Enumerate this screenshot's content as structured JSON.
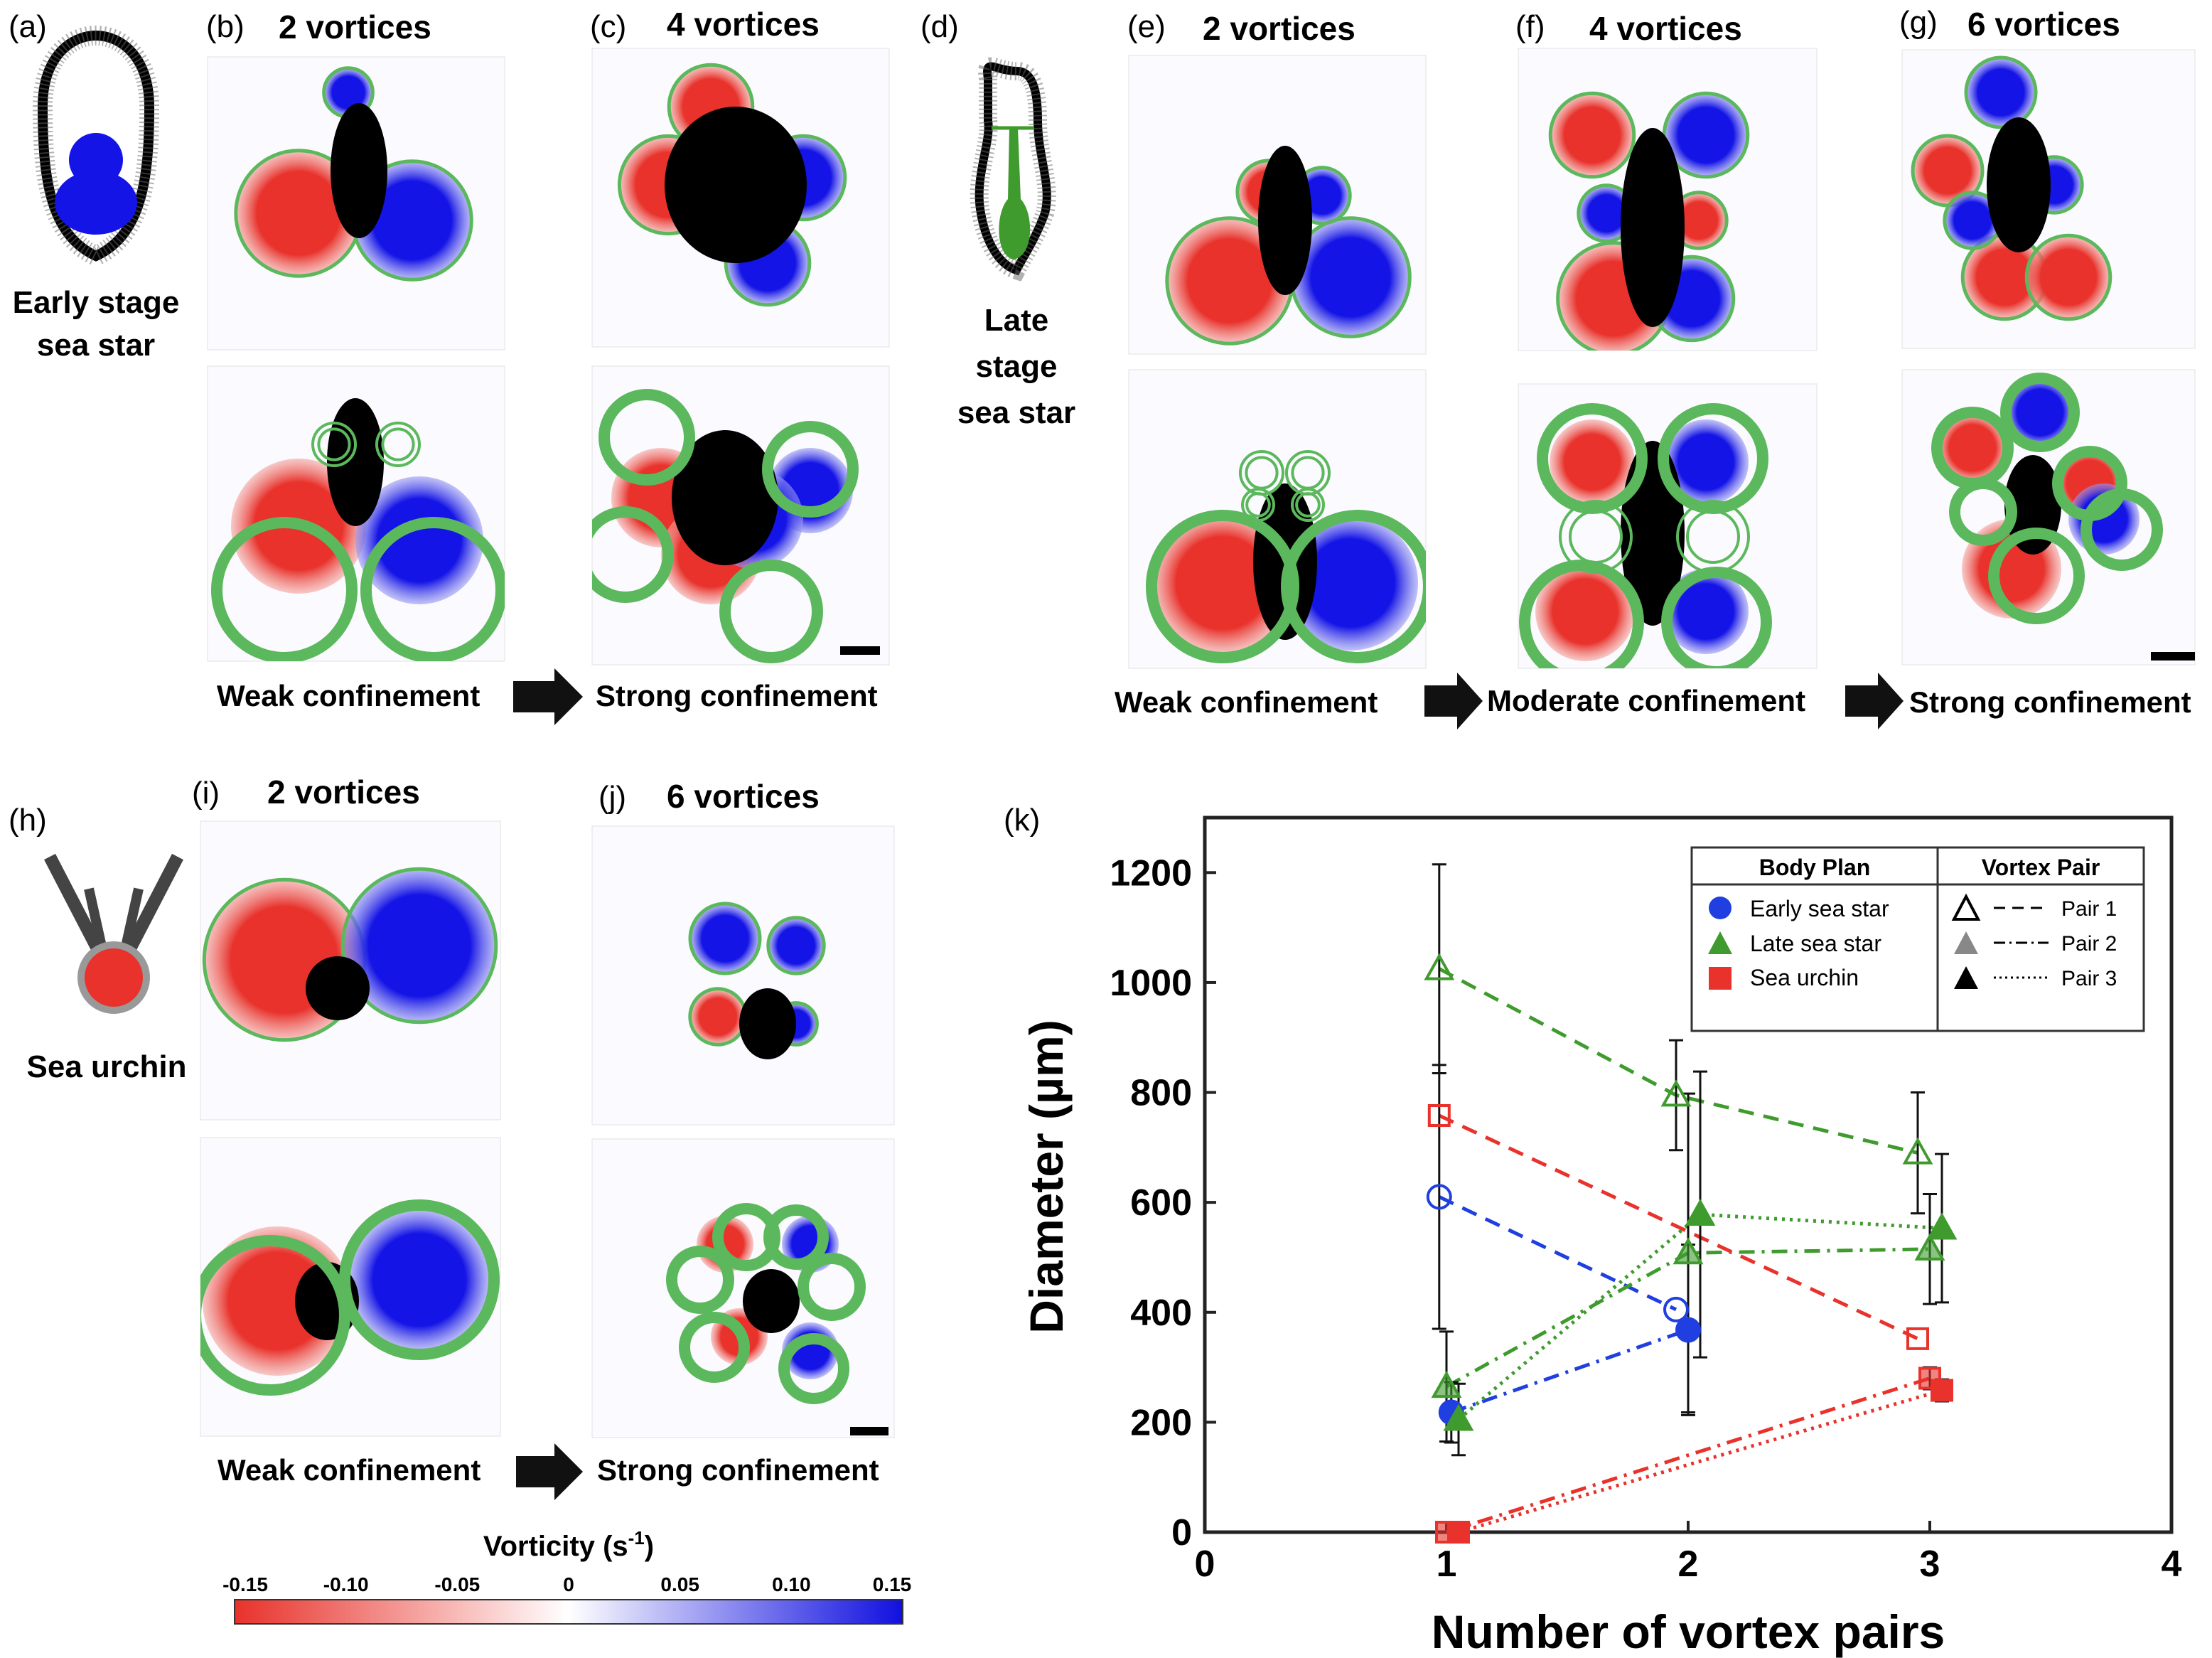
{
  "panels": {
    "a": {
      "tag": "(a)",
      "caption_line1": "Early stage",
      "caption_line2": "sea star"
    },
    "b": {
      "tag": "(b)",
      "title": "2 vortices"
    },
    "c": {
      "tag": "(c)",
      "title": "4 vortices"
    },
    "d": {
      "tag": "(d)",
      "caption_line1": "Late",
      "caption_line2": "stage",
      "caption_line3": "sea star"
    },
    "e": {
      "tag": "(e)",
      "title": "2 vortices"
    },
    "f": {
      "tag": "(f)",
      "title": "4 vortices"
    },
    "g": {
      "tag": "(g)",
      "title": "6 vortices"
    },
    "h": {
      "tag": "(h)",
      "caption": "Sea urchin"
    },
    "i": {
      "tag": "(i)",
      "title": "2 vortices"
    },
    "j": {
      "tag": "(j)",
      "title": "6 vortices"
    },
    "k": {
      "tag": "(k)"
    }
  },
  "confinement": {
    "row1": [
      "Weak confinement",
      "Strong confinement"
    ],
    "row2": [
      "Weak confinement",
      "Moderate confinement",
      "Strong confinement"
    ],
    "row3": [
      "Weak confinement",
      "Strong confinement"
    ]
  },
  "colorbar": {
    "title": "Vorticity (s",
    "title_sup": "-1",
    "title_end": ")",
    "ticks": [
      "-0.15",
      "-0.10",
      "-0.05",
      "0",
      "0.05",
      "0.10",
      "0.15"
    ],
    "neg_color": "#e8322b",
    "pos_color": "#1010e0"
  },
  "colors": {
    "red": "#e8322b",
    "blue": "#1414e6",
    "green": "#3f9b2e",
    "outline_green": "#5cb85c",
    "black": "#000000"
  },
  "chart_data": {
    "type": "scatter",
    "xlabel": "Number of vortex pairs",
    "ylabel": "Diameter (µm)",
    "xlim": [
      0,
      4
    ],
    "ylim": [
      0,
      1300
    ],
    "xticks": [
      0,
      1,
      2,
      3,
      4
    ],
    "yticks": [
      0,
      200,
      400,
      600,
      800,
      1000,
      1200
    ],
    "legend": {
      "body_plan_header": "Body Plan",
      "vortex_pair_header": "Vortex Pair",
      "body_plans": [
        "Early sea star",
        "Late sea star",
        "Sea urchin"
      ],
      "pairs": [
        "Pair 1",
        "Pair 2",
        "Pair 3"
      ],
      "placement": "top-right"
    },
    "series": [
      {
        "name": "Early sea star - Pair 1",
        "color": "#1f3fe0",
        "marker": "circle-open",
        "dash": "dashed",
        "points": [
          {
            "x": 0.97,
            "y": 610,
            "err": 240
          },
          {
            "x": 1.95,
            "y": 405,
            "err": 0
          }
        ]
      },
      {
        "name": "Early sea star - Pair 2",
        "color": "#1f3fe0",
        "marker": "circle-filled",
        "dash": "dashdot",
        "points": [
          {
            "x": 1.02,
            "y": 218,
            "err": 55
          },
          {
            "x": 2.0,
            "y": 368,
            "err": 155
          }
        ]
      },
      {
        "name": "Late sea star - Pair 1",
        "color": "#3f9b2e",
        "marker": "triangle-open",
        "dash": "dashed",
        "points": [
          {
            "x": 0.97,
            "y": 1025,
            "err": 190
          },
          {
            "x": 1.95,
            "y": 795,
            "err": 100
          },
          {
            "x": 2.95,
            "y": 690,
            "err": 110
          }
        ]
      },
      {
        "name": "Late sea star - Pair 2",
        "color": "#3f9b2e",
        "marker": "triangle-gray",
        "dash": "dashdot",
        "points": [
          {
            "x": 1.0,
            "y": 265,
            "err": 100
          },
          {
            "x": 2.0,
            "y": 508,
            "err": 290
          },
          {
            "x": 3.0,
            "y": 515,
            "err": 100
          }
        ]
      },
      {
        "name": "Late sea star - Pair 3",
        "color": "#3f9b2e",
        "marker": "triangle-filled",
        "dash": "dotted",
        "points": [
          {
            "x": 1.05,
            "y": 205,
            "err": 65
          },
          {
            "x": 2.05,
            "y": 578,
            "err": 260
          },
          {
            "x": 3.05,
            "y": 553,
            "err": 135
          }
        ]
      },
      {
        "name": "Sea urchin - Pair 1",
        "color": "#e8322b",
        "marker": "square-open",
        "dash": "dashed",
        "points": [
          {
            "x": 0.97,
            "y": 758,
            "err": 0
          },
          {
            "x": 2.95,
            "y": 352,
            "err": 0
          }
        ]
      },
      {
        "name": "Sea urchin - Pair 2",
        "color": "#e8322b",
        "marker": "square-gray",
        "dash": "dashdot",
        "points": [
          {
            "x": 1.0,
            "y": 0,
            "err": 0
          },
          {
            "x": 3.0,
            "y": 280,
            "err": 20
          }
        ]
      },
      {
        "name": "Sea urchin - Pair 3",
        "color": "#e8322b",
        "marker": "square-filled",
        "dash": "dotted",
        "points": [
          {
            "x": 1.05,
            "y": 0,
            "err": 0
          },
          {
            "x": 3.05,
            "y": 258,
            "err": 20
          }
        ]
      }
    ]
  }
}
